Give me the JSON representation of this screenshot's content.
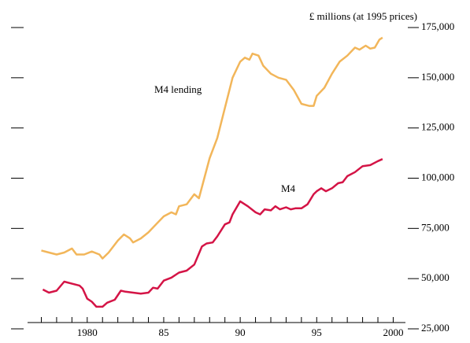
{
  "chart_data": {
    "type": "line",
    "y_axis_title": "£ millions (at 1995 prices)",
    "xlim": [
      1976.1,
      2000.8
    ],
    "xticks": [
      1980,
      {
        "value": 1985,
        "label": "85"
      },
      {
        "value": 1990,
        "label": "90"
      },
      {
        "value": 1995,
        "label": "95"
      },
      2000
    ],
    "xticks_minor": [
      1977,
      1978,
      1979,
      1981,
      1982,
      1983,
      1984,
      1986,
      1987,
      1988,
      1989,
      1991,
      1992,
      1993,
      1994,
      1996,
      1997,
      1998,
      1999
    ],
    "ylim": [
      25000,
      175000
    ],
    "yticks": [
      {
        "value": 25000,
        "label": "25,000"
      },
      {
        "value": 50000,
        "label": "50,000"
      },
      {
        "value": 75000,
        "label": "75,000"
      },
      {
        "value": 100000,
        "label": "100,000"
      },
      {
        "value": 125000,
        "label": "125,000"
      },
      {
        "value": 150000,
        "label": "150,000"
      },
      {
        "value": 175000,
        "label": "175,000"
      }
    ],
    "series": [
      {
        "name": "M4 lending",
        "color": "#f2b65a",
        "x": [
          1977.0,
          1977.5,
          1978.0,
          1978.5,
          1979.0,
          1979.3,
          1979.8,
          1980.3,
          1980.8,
          1981.0,
          1981.4,
          1982.0,
          1982.4,
          1982.8,
          1983.0,
          1983.5,
          1984.0,
          1984.5,
          1985.0,
          1985.5,
          1985.8,
          1986.0,
          1986.5,
          1987.0,
          1987.3,
          1988.0,
          1988.5,
          1989.0,
          1989.5,
          1990.0,
          1990.3,
          1990.6,
          1990.8,
          1991.2,
          1991.5,
          1992.0,
          1992.5,
          1993.0,
          1993.5,
          1994.0,
          1994.5,
          1994.8,
          1995.0,
          1995.5,
          1996.0,
          1996.5,
          1997.0,
          1997.5,
          1997.8,
          1998.2,
          1998.5,
          1998.8,
          1999.1,
          1999.3
        ],
        "values": [
          64000,
          63000,
          62000,
          63000,
          65000,
          62000,
          62000,
          63500,
          62000,
          60000,
          63000,
          69000,
          72000,
          70000,
          68000,
          70000,
          73000,
          77000,
          81000,
          83000,
          82000,
          86000,
          87000,
          92000,
          90000,
          110000,
          120000,
          135000,
          150000,
          158000,
          160000,
          159000,
          162000,
          161000,
          156000,
          152000,
          150000,
          149000,
          144000,
          137000,
          136000,
          136000,
          141000,
          145000,
          152000,
          158000,
          161000,
          165000,
          164000,
          166000,
          164500,
          165000,
          169000,
          170000
        ]
      },
      {
        "name": "M4",
        "color": "#d41446",
        "x": [
          1977.1,
          1977.5,
          1978.0,
          1978.5,
          1979.0,
          1979.5,
          1979.7,
          1980.0,
          1980.3,
          1980.6,
          1981.0,
          1981.3,
          1981.8,
          1982.2,
          1982.5,
          1983.0,
          1983.5,
          1984.0,
          1984.3,
          1984.6,
          1985.0,
          1985.5,
          1986.0,
          1986.5,
          1987.0,
          1987.5,
          1987.8,
          1988.2,
          1988.5,
          1989.0,
          1989.3,
          1989.5,
          1990.0,
          1990.5,
          1991.0,
          1991.3,
          1991.6,
          1992.0,
          1992.3,
          1992.6,
          1993.0,
          1993.3,
          1993.6,
          1994.0,
          1994.4,
          1994.8,
          1995.0,
          1995.3,
          1995.6,
          1996.0,
          1996.4,
          1996.7,
          1997.0,
          1997.5,
          1998.0,
          1998.5,
          1999.0,
          1999.3
        ],
        "values": [
          44600,
          43000,
          44000,
          48500,
          47500,
          46500,
          45000,
          40000,
          38500,
          36000,
          36000,
          38000,
          39500,
          44000,
          43500,
          43000,
          42500,
          43000,
          45500,
          45000,
          49000,
          50500,
          53000,
          54000,
          57000,
          66000,
          67500,
          68000,
          71000,
          77000,
          78000,
          82000,
          88500,
          86000,
          83000,
          82000,
          84500,
          84000,
          86000,
          84500,
          85500,
          84500,
          85000,
          85000,
          87000,
          92000,
          93500,
          95000,
          93500,
          95000,
          97500,
          98000,
          101000,
          103000,
          106000,
          106500,
          108500,
          109500
        ]
      }
    ]
  }
}
